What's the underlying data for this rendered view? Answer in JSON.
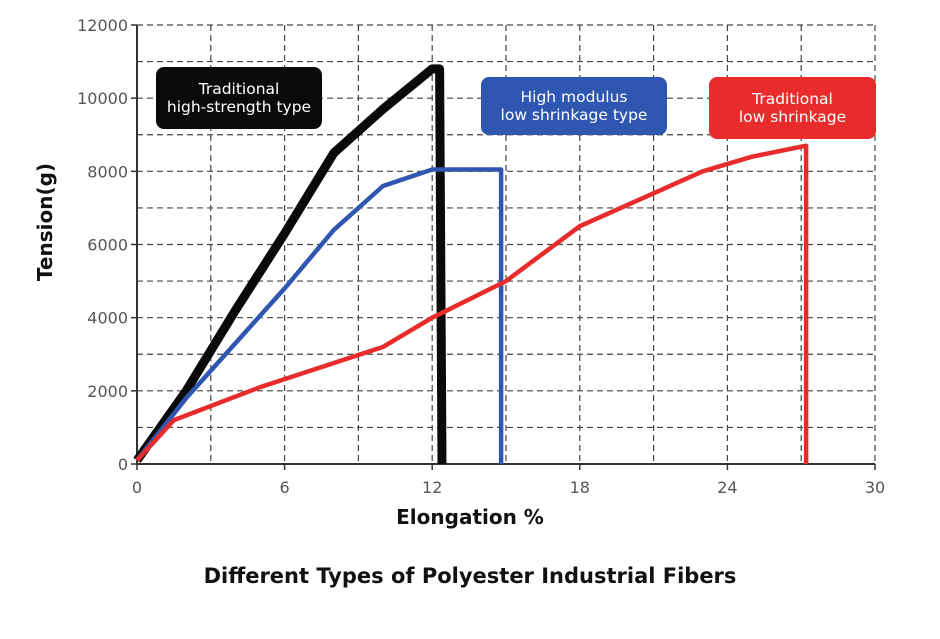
{
  "chart_data": {
    "type": "line",
    "xlabel": "Elongation %",
    "ylabel": "Tension(g)",
    "xlim": [
      0,
      30
    ],
    "ylim": [
      0,
      12000
    ],
    "x_ticks": [
      "0",
      "6",
      "12",
      "18",
      "24",
      "30"
    ],
    "y_ticks": [
      "0",
      "2000",
      "4000",
      "6000",
      "8000",
      "10000",
      "12000"
    ],
    "grid": true,
    "grid_style": "dashed",
    "caption": "Different Types of Polyester Industrial Fibers",
    "series": [
      {
        "name": "Traditional high-strength type",
        "label_lines": [
          "Traditional",
          "high-strength type"
        ],
        "color": "#0a0a0a",
        "x": [
          0,
          2,
          4,
          6,
          8,
          10,
          12,
          12.3,
          12.4
        ],
        "y": [
          100,
          2000,
          4200,
          6300,
          8500,
          9700,
          10800,
          10800,
          0
        ]
      },
      {
        "name": "High modulus low shrinkage type",
        "label_lines": [
          "High modulus",
          "low shrinkage type"
        ],
        "color": "#2f56b0",
        "x": [
          0,
          2,
          4,
          6,
          8,
          10,
          12,
          14.8,
          14.8
        ],
        "y": [
          100,
          1800,
          3300,
          4800,
          6400,
          7600,
          8050,
          8050,
          0
        ]
      },
      {
        "name": "Traditional low shrinkage",
        "label_lines": [
          "Traditional",
          "low shrinkage"
        ],
        "color": "#e82c2c",
        "x": [
          0,
          1.5,
          5,
          10,
          12,
          15,
          18,
          21,
          23,
          25,
          27.2,
          27.2
        ],
        "y": [
          100,
          1200,
          2100,
          3200,
          4000,
          5000,
          6500,
          7400,
          8000,
          8400,
          8700,
          0
        ]
      }
    ]
  }
}
